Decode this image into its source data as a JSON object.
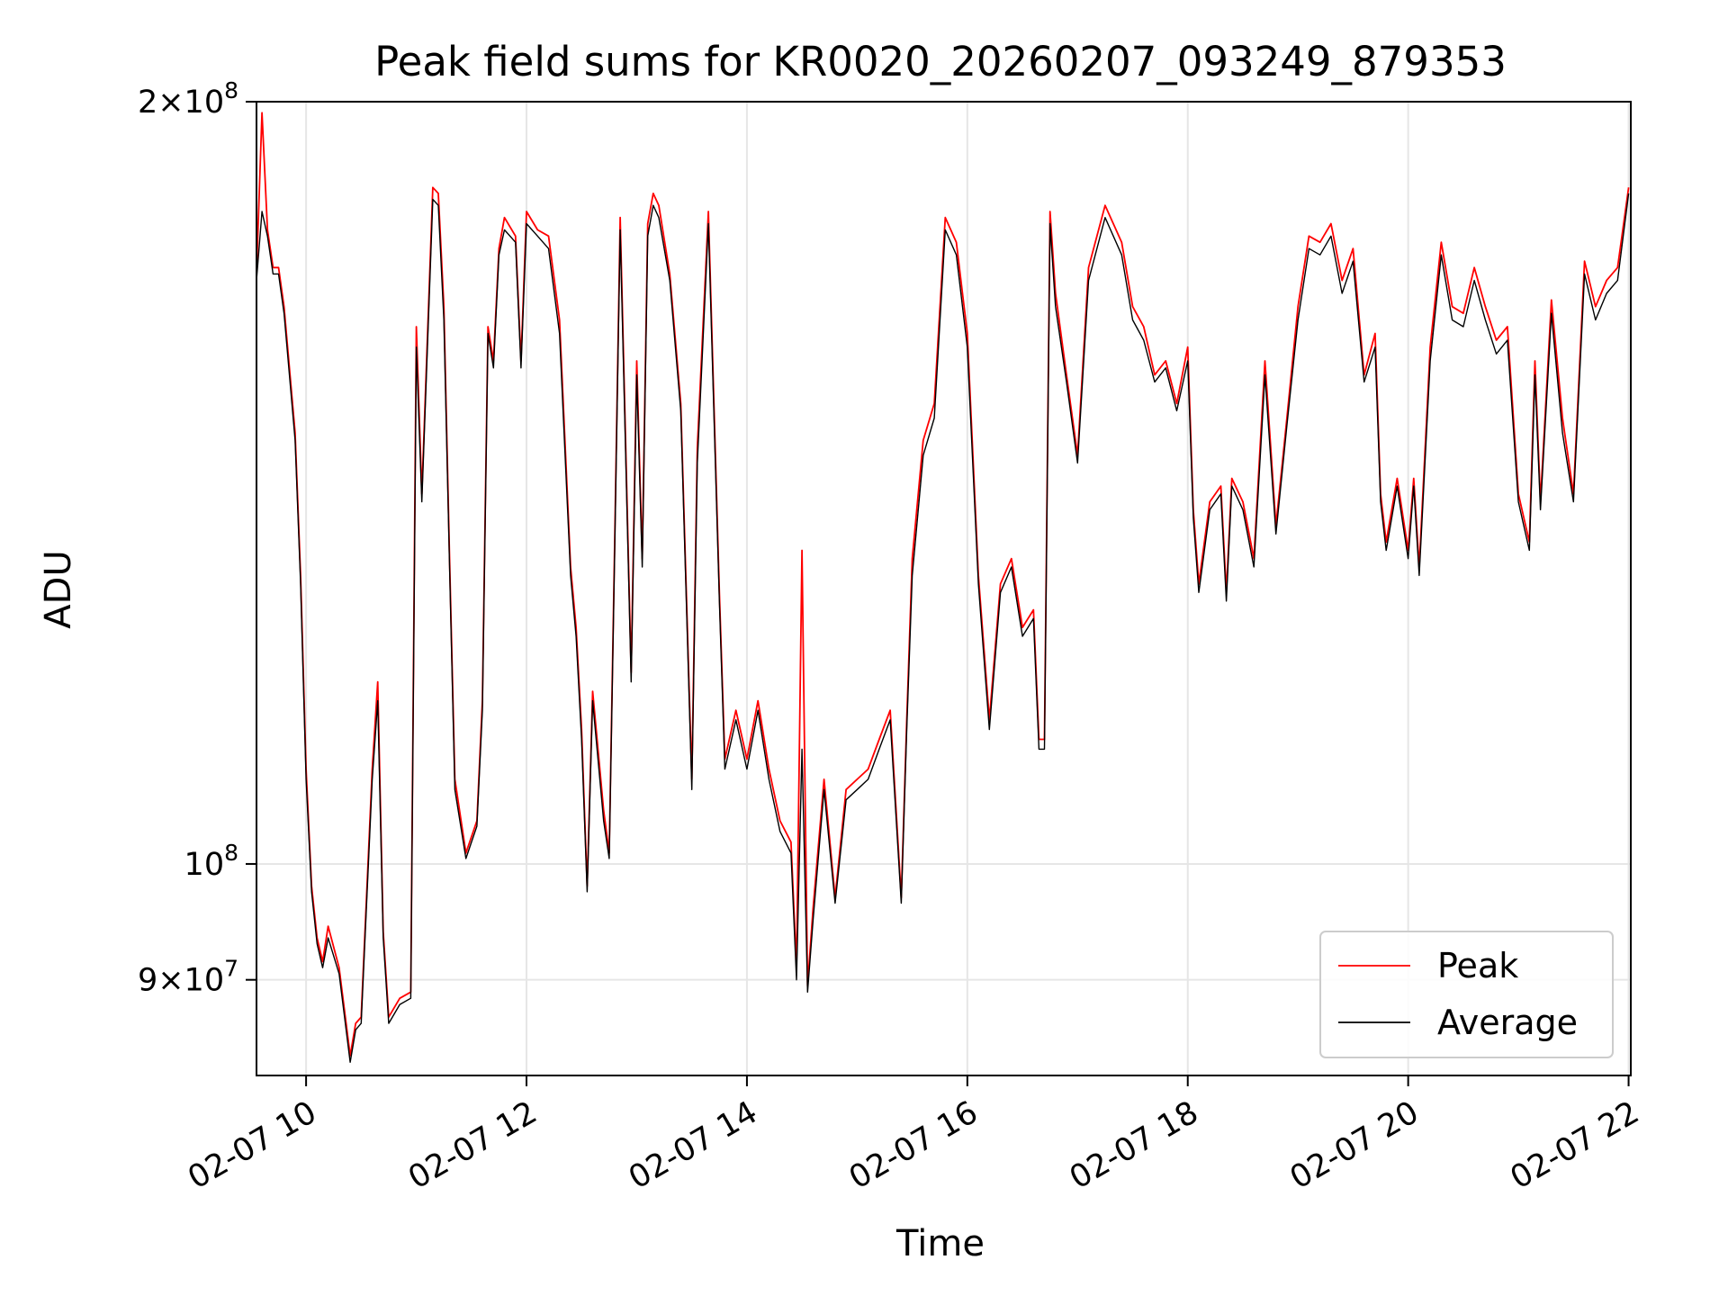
{
  "chart_data": {
    "type": "line",
    "title": "Peak field sums for KR0020_20260207_093249_879353",
    "xlabel": "Time",
    "ylabel": "ADU",
    "x_unit": "hours since 02-07 00:00",
    "xlim": [
      9.55,
      22.02
    ],
    "ylim": [
      82500000,
      200000000
    ],
    "yscale": "log",
    "grid": true,
    "legend_position": "lower-right",
    "x_ticks": [
      {
        "value": 10,
        "label": "02-07 10"
      },
      {
        "value": 12,
        "label": "02-07 12"
      },
      {
        "value": 14,
        "label": "02-07 14"
      },
      {
        "value": 16,
        "label": "02-07 16"
      },
      {
        "value": 18,
        "label": "02-07 18"
      },
      {
        "value": 20,
        "label": "02-07 20"
      },
      {
        "value": 22,
        "label": "02-07 22"
      }
    ],
    "y_ticks": [
      {
        "value": 200000000,
        "mantissa": "2",
        "exponent": "8",
        "label": "2×10^8"
      },
      {
        "value": 100000000,
        "mantissa": "",
        "exponent": "8",
        "label": "10^8"
      },
      {
        "value": 90000000,
        "mantissa": "9",
        "exponent": "7",
        "label": "9×10^7"
      }
    ],
    "x": [
      9.55,
      9.6,
      9.65,
      9.7,
      9.75,
      9.8,
      9.9,
      9.95,
      10.0,
      10.05,
      10.1,
      10.15,
      10.2,
      10.3,
      10.4,
      10.45,
      10.5,
      10.6,
      10.65,
      10.7,
      10.75,
      10.85,
      10.95,
      11.0,
      11.05,
      11.15,
      11.2,
      11.25,
      11.3,
      11.35,
      11.45,
      11.55,
      11.6,
      11.65,
      11.7,
      11.75,
      11.8,
      11.9,
      11.95,
      12.0,
      12.1,
      12.2,
      12.3,
      12.4,
      12.45,
      12.5,
      12.55,
      12.6,
      12.7,
      12.75,
      12.8,
      12.85,
      12.95,
      13.0,
      13.05,
      13.1,
      13.15,
      13.2,
      13.3,
      13.4,
      13.5,
      13.55,
      13.65,
      13.75,
      13.8,
      13.9,
      14.0,
      14.1,
      14.2,
      14.3,
      14.4,
      14.45,
      14.5,
      14.55,
      14.6,
      14.7,
      14.8,
      14.9,
      15.0,
      15.1,
      15.2,
      15.3,
      15.4,
      15.45,
      15.5,
      15.6,
      15.7,
      15.8,
      15.9,
      16.0,
      16.1,
      16.2,
      16.3,
      16.4,
      16.5,
      16.6,
      16.65,
      16.7,
      16.75,
      16.8,
      16.9,
      17.0,
      17.1,
      17.25,
      17.4,
      17.5,
      17.6,
      17.7,
      17.8,
      17.9,
      18.0,
      18.05,
      18.1,
      18.2,
      18.3,
      18.35,
      18.4,
      18.5,
      18.6,
      18.7,
      18.8,
      18.9,
      19.0,
      19.1,
      19.2,
      19.3,
      19.4,
      19.5,
      19.6,
      19.7,
      19.75,
      19.8,
      19.9,
      20.0,
      20.05,
      20.1,
      20.2,
      20.3,
      20.4,
      20.5,
      20.6,
      20.7,
      20.8,
      20.9,
      21.0,
      21.1,
      21.15,
      21.2,
      21.3,
      21.4,
      21.5,
      21.6,
      21.7,
      21.8,
      21.9,
      22.0
    ],
    "series": [
      {
        "name": "Peak",
        "color": "#ff0000",
        "values": [
          171000000,
          198000000,
          178000000,
          172000000,
          172000000,
          166000000,
          148000000,
          130000000,
          109000000,
          98000000,
          93500000,
          91500000,
          94500000,
          91000000,
          84000000,
          86500000,
          87000000,
          109000000,
          118000000,
          94000000,
          87000000,
          88500000,
          89000000,
          163000000,
          140000000,
          185000000,
          184000000,
          166000000,
          133000000,
          108000000,
          101000000,
          104000000,
          116000000,
          163000000,
          158000000,
          175000000,
          180000000,
          177000000,
          158000000,
          181000000,
          178000000,
          177000000,
          164000000,
          131000000,
          124000000,
          113000000,
          98000000,
          117000000,
          105000000,
          101000000,
          134000000,
          180000000,
          119000000,
          158000000,
          132000000,
          179000000,
          184000000,
          182000000,
          171000000,
          152000000,
          108000000,
          146000000,
          181000000,
          128000000,
          110000000,
          115000000,
          110000000,
          116000000,
          109000000,
          104000000,
          102000000,
          91000000,
          133000000,
          89500000,
          96000000,
          108000000,
          97000000,
          107000000,
          108000000,
          109000000,
          112000000,
          115000000,
          97000000,
          114000000,
          132000000,
          147000000,
          152000000,
          180000000,
          176000000,
          162000000,
          130000000,
          114000000,
          129000000,
          132000000,
          124000000,
          126000000,
          112000000,
          112000000,
          181000000,
          168000000,
          156000000,
          145000000,
          172000000,
          182000000,
          176000000,
          166000000,
          163000000,
          156000000,
          158000000,
          152000000,
          160000000,
          138000000,
          129000000,
          139000000,
          141000000,
          128000000,
          142000000,
          139000000,
          132000000,
          158000000,
          136000000,
          150000000,
          166000000,
          177000000,
          176000000,
          179000000,
          170000000,
          175000000,
          156000000,
          162000000,
          140000000,
          134000000,
          142000000,
          133000000,
          142000000,
          131000000,
          160000000,
          176000000,
          166000000,
          165000000,
          172000000,
          166000000,
          161000000,
          163000000,
          140000000,
          134000000,
          158000000,
          139000000,
          167000000,
          150000000,
          140000000,
          173000000,
          166000000,
          170000000,
          172000000,
          185000000
        ]
      },
      {
        "name": "Average",
        "color": "#000000",
        "values": [
          170000000,
          181000000,
          177000000,
          171000000,
          171000000,
          165000000,
          147000000,
          129000000,
          108000000,
          97500000,
          93000000,
          91000000,
          93500000,
          90500000,
          83500000,
          86000000,
          86500000,
          108000000,
          116000000,
          93500000,
          86500000,
          88000000,
          88500000,
          160000000,
          139000000,
          183000000,
          182000000,
          164000000,
          132000000,
          107000000,
          100500000,
          103500000,
          115000000,
          162000000,
          157000000,
          174000000,
          178000000,
          176000000,
          157000000,
          179000000,
          177000000,
          175000000,
          162000000,
          130000000,
          123000000,
          112000000,
          97500000,
          116000000,
          104000000,
          100500000,
          133000000,
          178000000,
          118000000,
          156000000,
          131000000,
          177000000,
          182000000,
          180000000,
          170000000,
          151000000,
          107000000,
          144000000,
          179000000,
          127000000,
          109000000,
          114000000,
          109000000,
          115000000,
          108000000,
          103000000,
          101000000,
          90000000,
          111000000,
          89000000,
          95000000,
          107000000,
          96500000,
          106000000,
          107000000,
          108000000,
          111000000,
          114000000,
          96500000,
          113000000,
          130000000,
          145000000,
          150000000,
          178000000,
          174000000,
          160000000,
          129000000,
          113000000,
          128000000,
          131000000,
          123000000,
          125000000,
          111000000,
          111000000,
          179000000,
          166000000,
          155000000,
          144000000,
          170000000,
          180000000,
          174000000,
          164000000,
          161000000,
          155000000,
          157000000,
          151000000,
          158000000,
          137000000,
          128000000,
          138000000,
          140000000,
          127000000,
          141000000,
          138000000,
          131000000,
          156000000,
          135000000,
          149000000,
          164000000,
          175000000,
          174000000,
          177000000,
          168000000,
          173000000,
          155000000,
          160000000,
          139000000,
          133000000,
          141000000,
          132000000,
          141000000,
          130000000,
          158000000,
          174000000,
          164000000,
          163000000,
          170000000,
          164000000,
          159000000,
          161000000,
          139000000,
          133000000,
          156000000,
          138000000,
          165000000,
          148000000,
          139000000,
          171000000,
          164000000,
          168000000,
          170000000,
          184000000
        ]
      }
    ]
  }
}
